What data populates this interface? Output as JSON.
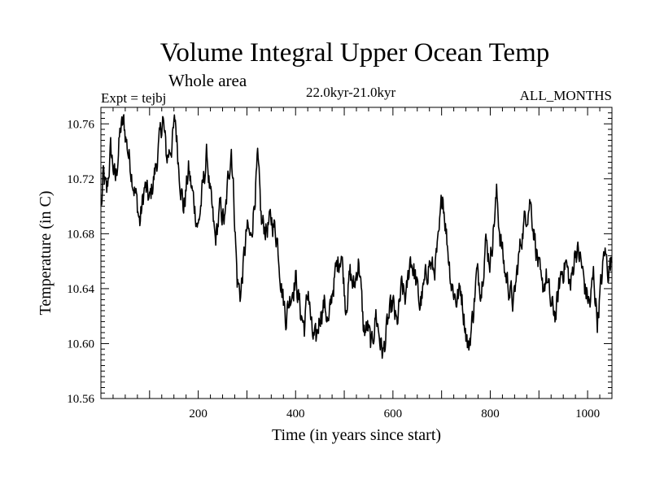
{
  "chart_data": {
    "type": "line",
    "title": "Volume Integral Upper Ocean Temp",
    "subtitle": "Whole area",
    "experiment_label": "Expt = tejbj",
    "period_label": "22.0kyr-21.0kyr",
    "months_label": "ALL_MONTHS",
    "xlabel": "Time (in years since start)",
    "ylabel": "Temperature (in C)",
    "xlim": [
      0,
      1050
    ],
    "ylim": [
      10.56,
      10.772
    ],
    "xticks": [
      200,
      400,
      600,
      800,
      1000
    ],
    "xtick_labels": [
      "200",
      "400",
      "600",
      "800",
      "1000"
    ],
    "yticks": [
      10.56,
      10.6,
      10.64,
      10.68,
      10.72,
      10.76
    ],
    "ytick_labels": [
      "10.56",
      "10.60",
      "10.64",
      "10.68",
      "10.72",
      "10.76"
    ],
    "series": [
      {
        "name": "Volume integral upper ocean temperature",
        "color": "#000000",
        "x_start": 1,
        "x_step": 1,
        "anchors": [
          [
            0,
            10.692
          ],
          [
            5,
            10.722
          ],
          [
            12,
            10.708
          ],
          [
            20,
            10.741
          ],
          [
            30,
            10.718
          ],
          [
            40,
            10.755
          ],
          [
            47,
            10.76
          ],
          [
            55,
            10.742
          ],
          [
            63,
            10.726
          ],
          [
            72,
            10.707
          ],
          [
            80,
            10.688
          ],
          [
            90,
            10.714
          ],
          [
            100,
            10.703
          ],
          [
            112,
            10.727
          ],
          [
            120,
            10.745
          ],
          [
            127,
            10.765
          ],
          [
            135,
            10.735
          ],
          [
            145,
            10.745
          ],
          [
            153,
            10.762
          ],
          [
            160,
            10.73
          ],
          [
            170,
            10.698
          ],
          [
            180,
            10.726
          ],
          [
            190,
            10.705
          ],
          [
            200,
            10.685
          ],
          [
            210,
            10.715
          ],
          [
            218,
            10.738
          ],
          [
            225,
            10.706
          ],
          [
            235,
            10.674
          ],
          [
            245,
            10.698
          ],
          [
            255,
            10.688
          ],
          [
            262,
            10.722
          ],
          [
            268,
            10.744
          ],
          [
            273,
            10.708
          ],
          [
            280,
            10.646
          ],
          [
            287,
            10.636
          ],
          [
            293,
            10.658
          ],
          [
            300,
            10.683
          ],
          [
            308,
            10.675
          ],
          [
            315,
            10.703
          ],
          [
            322,
            10.732
          ],
          [
            330,
            10.687
          ],
          [
            340,
            10.684
          ],
          [
            352,
            10.69
          ],
          [
            362,
            10.678
          ],
          [
            372,
            10.64
          ],
          [
            380,
            10.62
          ],
          [
            390,
            10.636
          ],
          [
            400,
            10.648
          ],
          [
            410,
            10.624
          ],
          [
            418,
            10.612
          ],
          [
            426,
            10.64
          ],
          [
            434,
            10.605
          ],
          [
            442,
            10.6
          ],
          [
            450,
            10.622
          ],
          [
            460,
            10.63
          ],
          [
            468,
            10.612
          ],
          [
            476,
            10.64
          ],
          [
            485,
            10.656
          ],
          [
            494,
            10.668
          ],
          [
            503,
            10.628
          ],
          [
            512,
            10.65
          ],
          [
            520,
            10.64
          ],
          [
            530,
            10.662
          ],
          [
            540,
            10.608
          ],
          [
            548,
            10.612
          ],
          [
            556,
            10.596
          ],
          [
            565,
            10.622
          ],
          [
            574,
            10.602
          ],
          [
            580,
            10.592
          ],
          [
            590,
            10.616
          ],
          [
            600,
            10.628
          ],
          [
            608,
            10.612
          ],
          [
            618,
            10.64
          ],
          [
            627,
            10.632
          ],
          [
            636,
            10.664
          ],
          [
            645,
            10.65
          ],
          [
            655,
            10.628
          ],
          [
            664,
            10.64
          ],
          [
            674,
            10.66
          ],
          [
            684,
            10.652
          ],
          [
            694,
            10.672
          ],
          [
            702,
            10.712
          ],
          [
            710,
            10.68
          ],
          [
            720,
            10.645
          ],
          [
            730,
            10.632
          ],
          [
            740,
            10.64
          ],
          [
            748,
            10.615
          ],
          [
            755,
            10.595
          ],
          [
            764,
            10.62
          ],
          [
            772,
            10.65
          ],
          [
            782,
            10.642
          ],
          [
            790,
            10.675
          ],
          [
            800,
            10.66
          ],
          [
            808,
            10.69
          ],
          [
            813,
            10.708
          ],
          [
            820,
            10.68
          ],
          [
            830,
            10.652
          ],
          [
            840,
            10.64
          ],
          [
            848,
            10.628
          ],
          [
            856,
            10.655
          ],
          [
            865,
            10.68
          ],
          [
            874,
            10.695
          ],
          [
            882,
            10.705
          ],
          [
            890,
            10.682
          ],
          [
            898,
            10.66
          ],
          [
            906,
            10.636
          ],
          [
            915,
            10.65
          ],
          [
            925,
            10.626
          ],
          [
            935,
            10.622
          ],
          [
            945,
            10.65
          ],
          [
            955,
            10.66
          ],
          [
            965,
            10.64
          ],
          [
            975,
            10.67
          ],
          [
            985,
            10.662
          ],
          [
            995,
            10.64
          ],
          [
            1005,
            10.628
          ],
          [
            1012,
            10.65
          ],
          [
            1020,
            10.618
          ],
          [
            1027,
            10.64
          ],
          [
            1035,
            10.668
          ],
          [
            1042,
            10.655
          ],
          [
            1050,
            10.66
          ]
        ]
      }
    ]
  }
}
